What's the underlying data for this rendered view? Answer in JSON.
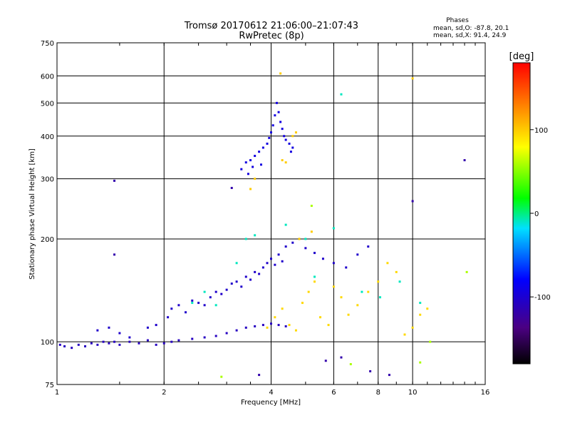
{
  "chart_data": {
    "type": "scatter",
    "title": "Tromsø 20170612 21:06:00–21:07:43",
    "subtitle": "RwPretec (8p)",
    "xlabel": "Frequency [MHz]",
    "ylabel": "Stationary phase Virtual Height [km]",
    "xscale": "log2",
    "yscale": "log",
    "xlim": [
      1,
      16
    ],
    "ylim": [
      75,
      750
    ],
    "xticks": [
      1,
      2,
      4,
      6,
      8,
      10,
      16
    ],
    "yticks": [
      75,
      100,
      200,
      300,
      400,
      500,
      600,
      750
    ],
    "phase_stats": {
      "header": "Phases",
      "o_line": "mean, sd,O:  -87.8, 20.1",
      "x_line": "mean, sd,X:  91.4, 24.9"
    },
    "colorbar": {
      "label": "[deg]",
      "range": [
        -180,
        180
      ],
      "ticks": [
        100,
        0,
        -100
      ],
      "tick_labels": [
        "100",
        "0",
        "-100"
      ]
    },
    "clusters": [
      {
        "name": "o-trace-low",
        "phase": -110,
        "points": [
          [
            1.02,
            98
          ],
          [
            1.05,
            97
          ],
          [
            1.1,
            96
          ],
          [
            1.15,
            98
          ],
          [
            1.2,
            97
          ],
          [
            1.25,
            99
          ],
          [
            1.3,
            98
          ],
          [
            1.35,
            100
          ],
          [
            1.4,
            99
          ],
          [
            1.45,
            100
          ],
          [
            1.5,
            98
          ],
          [
            1.6,
            100
          ],
          [
            1.7,
            99
          ],
          [
            1.8,
            101
          ],
          [
            1.9,
            98
          ],
          [
            2.0,
            99
          ],
          [
            2.1,
            100
          ],
          [
            2.2,
            101
          ],
          [
            2.4,
            102
          ],
          [
            2.6,
            103
          ],
          [
            2.8,
            104
          ],
          [
            3.0,
            106
          ],
          [
            3.2,
            108
          ],
          [
            3.4,
            110
          ],
          [
            3.6,
            111
          ],
          [
            3.8,
            112
          ],
          [
            4.0,
            113
          ],
          [
            4.2,
            112
          ],
          [
            4.4,
            111
          ]
        ]
      },
      {
        "name": "o-trace-F1",
        "phase": -105,
        "points": [
          [
            1.3,
            108
          ],
          [
            1.4,
            110
          ],
          [
            1.5,
            106
          ],
          [
            1.6,
            103
          ],
          [
            1.8,
            110
          ],
          [
            1.9,
            112
          ],
          [
            2.05,
            118
          ],
          [
            2.1,
            125
          ],
          [
            2.2,
            128
          ],
          [
            2.3,
            122
          ],
          [
            2.4,
            132
          ],
          [
            2.5,
            130
          ],
          [
            2.6,
            128
          ],
          [
            2.7,
            135
          ],
          [
            2.8,
            140
          ],
          [
            2.9,
            138
          ],
          [
            3.0,
            142
          ],
          [
            3.1,
            148
          ],
          [
            3.2,
            150
          ],
          [
            3.3,
            145
          ],
          [
            3.4,
            155
          ],
          [
            3.5,
            152
          ],
          [
            3.6,
            160
          ],
          [
            3.7,
            158
          ],
          [
            3.8,
            165
          ],
          [
            3.9,
            170
          ],
          [
            4.0,
            175
          ],
          [
            4.1,
            168
          ],
          [
            4.2,
            180
          ],
          [
            4.3,
            172
          ],
          [
            4.4,
            190
          ],
          [
            4.6,
            195
          ],
          [
            4.8,
            200
          ],
          [
            5.0,
            188
          ],
          [
            5.3,
            182
          ],
          [
            5.6,
            175
          ],
          [
            6.0,
            170
          ],
          [
            6.5,
            165
          ],
          [
            7.0,
            180
          ],
          [
            7.5,
            190
          ]
        ]
      },
      {
        "name": "o-trace-F2",
        "phase": -95,
        "points": [
          [
            3.3,
            320
          ],
          [
            3.4,
            335
          ],
          [
            3.45,
            310
          ],
          [
            3.5,
            340
          ],
          [
            3.55,
            325
          ],
          [
            3.6,
            350
          ],
          [
            3.7,
            360
          ],
          [
            3.75,
            330
          ],
          [
            3.8,
            370
          ],
          [
            3.9,
            380
          ],
          [
            3.95,
            395
          ],
          [
            4.0,
            410
          ],
          [
            4.05,
            430
          ],
          [
            4.1,
            460
          ],
          [
            4.15,
            500
          ],
          [
            4.2,
            470
          ],
          [
            4.25,
            440
          ],
          [
            4.3,
            420
          ],
          [
            4.35,
            400
          ],
          [
            4.4,
            390
          ],
          [
            4.5,
            380
          ],
          [
            4.55,
            360
          ],
          [
            4.6,
            370
          ]
        ]
      },
      {
        "name": "x-trace-mid",
        "phase": 95,
        "points": [
          [
            3.9,
            110
          ],
          [
            4.1,
            118
          ],
          [
            4.3,
            125
          ],
          [
            4.5,
            112
          ],
          [
            4.7,
            108
          ],
          [
            4.9,
            130
          ],
          [
            5.1,
            140
          ],
          [
            5.3,
            150
          ],
          [
            5.5,
            118
          ],
          [
            5.8,
            112
          ],
          [
            6.0,
            145
          ],
          [
            6.3,
            135
          ],
          [
            6.6,
            120
          ],
          [
            7.0,
            128
          ],
          [
            7.5,
            140
          ],
          [
            8.0,
            150
          ],
          [
            8.5,
            170
          ],
          [
            9.0,
            160
          ],
          [
            9.5,
            105
          ],
          [
            10.0,
            110
          ],
          [
            10.5,
            120
          ],
          [
            11.0,
            125
          ]
        ]
      },
      {
        "name": "x-trace-F2",
        "phase": 100,
        "points": [
          [
            3.5,
            280
          ],
          [
            3.6,
            300
          ],
          [
            4.3,
            340
          ],
          [
            4.4,
            335
          ],
          [
            4.6,
            400
          ],
          [
            4.7,
            410
          ],
          [
            4.8,
            200
          ],
          [
            5.2,
            210
          ],
          [
            10.0,
            590
          ],
          [
            4.25,
            610
          ]
        ]
      },
      {
        "name": "mixed-scatter",
        "phase": -10,
        "points": [
          [
            2.4,
            130
          ],
          [
            2.6,
            140
          ],
          [
            2.8,
            128
          ],
          [
            3.2,
            170
          ],
          [
            3.4,
            200
          ],
          [
            3.6,
            205
          ],
          [
            4.4,
            220
          ],
          [
            5.0,
            200
          ],
          [
            5.3,
            155
          ],
          [
            6.0,
            215
          ],
          [
            6.3,
            530
          ],
          [
            7.2,
            140
          ],
          [
            8.1,
            135
          ],
          [
            9.2,
            150
          ],
          [
            10.5,
            130
          ]
        ]
      },
      {
        "name": "o-outliers",
        "phase": -120,
        "points": [
          [
            1.45,
            180
          ],
          [
            1.45,
            296
          ],
          [
            3.1,
            282
          ],
          [
            3.7,
            80
          ],
          [
            5.7,
            88
          ],
          [
            6.3,
            90
          ],
          [
            7.6,
            82
          ],
          [
            8.6,
            80
          ],
          [
            14.0,
            340
          ],
          [
            10.0,
            258
          ]
        ]
      },
      {
        "name": "x-outliers",
        "phase": 60,
        "points": [
          [
            2.9,
            79
          ],
          [
            5.2,
            250
          ],
          [
            14.2,
            160
          ],
          [
            6.7,
            86
          ],
          [
            10.5,
            87
          ],
          [
            11.2,
            100
          ]
        ]
      }
    ]
  }
}
